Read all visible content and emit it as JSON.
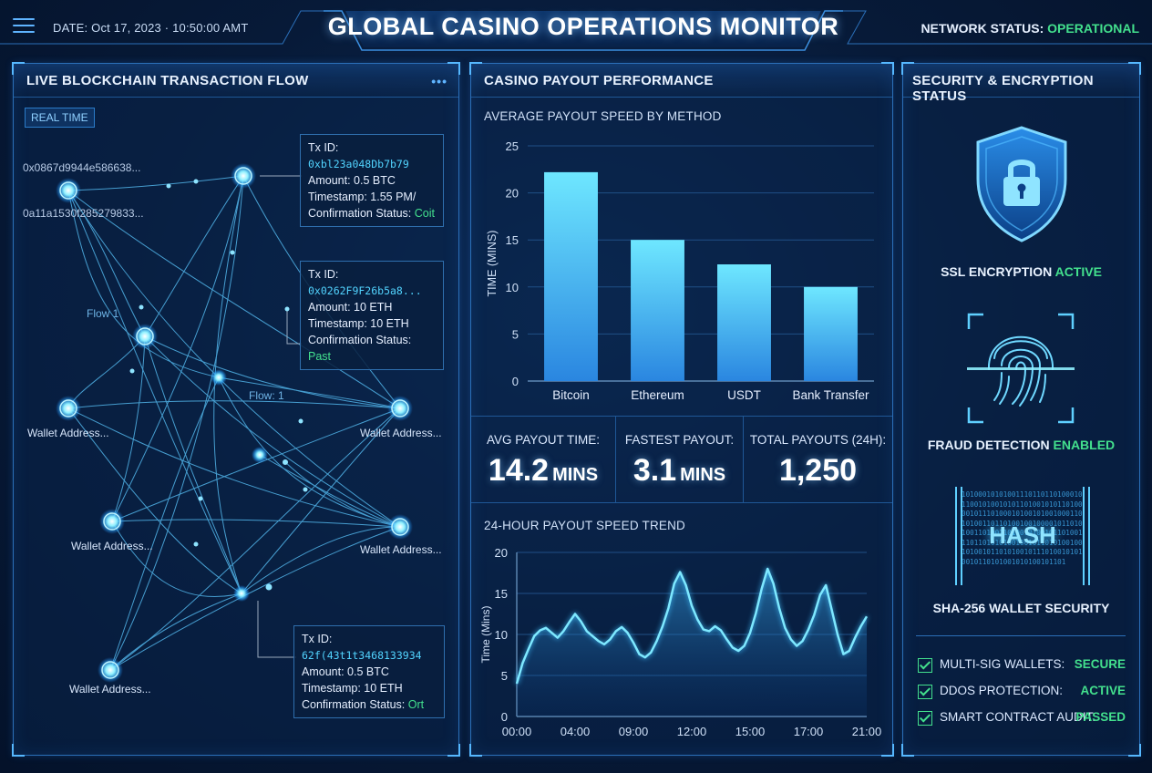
{
  "header": {
    "date_text": "DATE: Oct 17, 2023 · 10:50:00 AMT",
    "title": "GLOBAL CASINO OPERATIONS MONITOR",
    "network_status_label": "NETWORK STATUS:",
    "network_status_value": "OPERATIONAL"
  },
  "left_panel": {
    "title": "LIVE BLOCKCHAIN TRANSACTION FLOW",
    "badge": "REAL TIME",
    "source_address_1": "0x0867d9944e586638...",
    "source_address_2": "0a11a1530f285279833...",
    "flow_label_1": "Flow 1",
    "flow_label_2": "Flow: 1",
    "wallet_label": "Wallet Address...",
    "tx_cards": [
      {
        "id_label": "Tx ID:",
        "id": "0xbl23a048Db7b79",
        "amount": "Amount: 0.5 BTC",
        "timestamp": "Timestamp: 1.55 PM/",
        "status_label": "Confirmation Status:",
        "status": "Coit"
      },
      {
        "id_label": "Tx ID:",
        "id": "0x0262F9F26b5a8...",
        "amount": "Amount: 10 ETH",
        "timestamp": "Timestamp: 10 ETH",
        "status_label": "Confirmation Status:",
        "status": "Past"
      },
      {
        "id_label": "Tx ID:",
        "id": "62f(43t1t3468133934",
        "amount": "Amount: 0.5 BTC",
        "timestamp": "Timestamp: 10 ETH",
        "status_label": "Confirmation Status:",
        "status": "Ort"
      }
    ]
  },
  "center_panel": {
    "title": "CASINO PAYOUT PERFORMANCE",
    "bar_section_title": "AVERAGE PAYOUT SPEED BY METHOD",
    "stats": [
      {
        "label": "AVG PAYOUT TIME:",
        "value": "14.2",
        "unit": "MINS"
      },
      {
        "label": "FASTEST PAYOUT:",
        "value": "3.1",
        "unit": "MINS"
      },
      {
        "label": "TOTAL PAYOUTS (24H):",
        "value": "1,250",
        "unit": ""
      }
    ],
    "trend_section_title": "24-HOUR PAYOUT SPEED TREND"
  },
  "chart_data": [
    {
      "type": "bar",
      "ylabel": "TIME (MINS)",
      "categories": [
        "Bitcoin",
        "Ethereum",
        "USDT",
        "Bank Transfer"
      ],
      "values": [
        22.2,
        15.0,
        12.4,
        10.0
      ],
      "ylim": [
        0,
        25
      ],
      "yticks": [
        0,
        5,
        10,
        15,
        20,
        25
      ],
      "grid": true,
      "color": "#5ad8ff"
    },
    {
      "type": "area",
      "ylabel": "Time (Mins)",
      "xticks": [
        "00:00",
        "04:00",
        "09:00",
        "12:00",
        "15:00",
        "17:00",
        "21:00"
      ],
      "yticks": [
        0,
        5,
        10,
        15,
        20
      ],
      "ylim": [
        0,
        20
      ],
      "xlim": [
        0,
        24
      ],
      "grid": true,
      "color": "#5ad8ff",
      "x": [
        0,
        0.4,
        0.8,
        1.2,
        1.6,
        2.0,
        2.4,
        2.8,
        3.2,
        3.6,
        4.0,
        4.4,
        4.8,
        5.2,
        5.6,
        6.0,
        6.4,
        6.8,
        7.2,
        7.6,
        8.0,
        8.4,
        8.8,
        9.2,
        9.6,
        10.0,
        10.4,
        10.8,
        11.2,
        11.6,
        12.0,
        12.4,
        12.8,
        13.2,
        13.6,
        14.0,
        14.4,
        14.8,
        15.2,
        15.6,
        16.0,
        16.4,
        16.8,
        17.2,
        17.6,
        18.0,
        18.4,
        18.8,
        19.2,
        19.6,
        20.0,
        20.4,
        20.8,
        21.2,
        21.6,
        22.0,
        22.4,
        22.8,
        23.2,
        23.6,
        24.0
      ],
      "values": [
        4.0,
        6.5,
        8.2,
        9.8,
        10.5,
        10.8,
        10.2,
        9.6,
        10.4,
        11.5,
        12.5,
        11.6,
        10.4,
        9.8,
        9.2,
        8.8,
        9.4,
        10.4,
        10.9,
        10.2,
        9.0,
        7.6,
        7.2,
        7.8,
        9.2,
        11.0,
        13.2,
        16.2,
        17.6,
        16.0,
        13.5,
        11.8,
        10.6,
        10.4,
        11.0,
        10.5,
        9.4,
        8.4,
        8.0,
        8.6,
        10.2,
        12.6,
        15.6,
        18.0,
        16.2,
        13.2,
        10.8,
        9.4,
        8.6,
        9.2,
        10.6,
        12.4,
        14.8,
        16.0,
        13.0,
        10.0,
        7.6,
        8.0,
        9.6,
        11.0,
        12.2
      ]
    }
  ],
  "right_panel": {
    "title": "SECURITY & ENCRYPTION STATUS",
    "ssl_label": "SSL ENCRYPTION",
    "ssl_value": "ACTIVE",
    "fraud_label": "FRAUD DETECTION",
    "fraud_value": "ENABLED",
    "hash_word": "HASH",
    "hash_bits": "101000101010011101101101000101100101001010110100101011010000101110100010100101001000110101001101101001001000010110101001101001101001010010110100111011010101001001011010100100101001011010100101110100101010010110101001010100101101",
    "sha_label": "SHA-256 WALLET SECURITY",
    "checks": [
      {
        "label": "MULTI-SIG WALLETS:",
        "value": "SECURE"
      },
      {
        "label": "DDOS PROTECTION:",
        "value": "ACTIVE"
      },
      {
        "label": "SMART CONTRACT AUDIT:",
        "value": "PASSED"
      }
    ]
  }
}
